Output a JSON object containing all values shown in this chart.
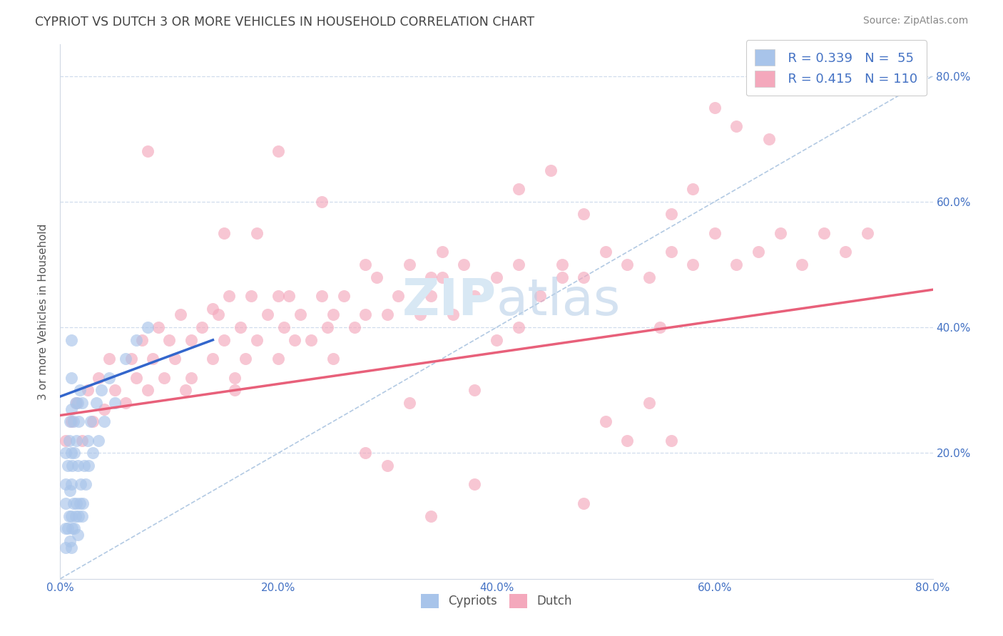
{
  "title": "CYPRIOT VS DUTCH 3 OR MORE VEHICLES IN HOUSEHOLD CORRELATION CHART",
  "source_text": "Source: ZipAtlas.com",
  "ylabel": "3 or more Vehicles in Household",
  "xmin": 0.0,
  "xmax": 0.8,
  "ymin": 0.0,
  "ymax": 0.85,
  "legend_label1": "Cypriots",
  "legend_label2": "Dutch",
  "legend_r1": "R = 0.339",
  "legend_n1": "N =  55",
  "legend_r2": "R = 0.415",
  "legend_n2": "N = 110",
  "color_cypriot": "#a8c4ea",
  "color_dutch": "#f4a8bc",
  "color_trendline_cypriot": "#3366cc",
  "color_trendline_dutch": "#e8607a",
  "color_refline": "#aac4e0",
  "title_color": "#444444",
  "source_color": "#888888",
  "axis_label_color": "#555555",
  "tick_color": "#4472c4",
  "background_color": "#ffffff",
  "grid_color": "#d0dded",
  "watermark_color": "#d8e8f4",
  "xtick_labels": [
    "0.0%",
    "20.0%",
    "40.0%",
    "60.0%",
    "80.0%"
  ],
  "xtick_positions": [
    0.0,
    0.2,
    0.4,
    0.6,
    0.8
  ],
  "ytick_labels": [
    "20.0%",
    "40.0%",
    "60.0%",
    "80.0%"
  ],
  "ytick_positions": [
    0.2,
    0.4,
    0.6,
    0.8
  ],
  "cypriot_x": [
    0.005,
    0.005,
    0.005,
    0.005,
    0.005,
    0.007,
    0.007,
    0.008,
    0.008,
    0.009,
    0.009,
    0.009,
    0.01,
    0.01,
    0.01,
    0.01,
    0.01,
    0.01,
    0.01,
    0.011,
    0.011,
    0.012,
    0.012,
    0.013,
    0.013,
    0.014,
    0.014,
    0.015,
    0.015,
    0.016,
    0.016,
    0.016,
    0.017,
    0.017,
    0.018,
    0.018,
    0.019,
    0.02,
    0.02,
    0.021,
    0.022,
    0.023,
    0.025,
    0.026,
    0.028,
    0.03,
    0.033,
    0.035,
    0.038,
    0.04,
    0.045,
    0.05,
    0.06,
    0.07,
    0.08
  ],
  "cypriot_y": [
    0.05,
    0.08,
    0.12,
    0.15,
    0.2,
    0.08,
    0.18,
    0.1,
    0.22,
    0.06,
    0.14,
    0.25,
    0.05,
    0.1,
    0.15,
    0.2,
    0.27,
    0.32,
    0.38,
    0.08,
    0.18,
    0.12,
    0.25,
    0.08,
    0.2,
    0.1,
    0.28,
    0.12,
    0.22,
    0.07,
    0.18,
    0.28,
    0.1,
    0.25,
    0.12,
    0.3,
    0.15,
    0.1,
    0.28,
    0.12,
    0.18,
    0.15,
    0.22,
    0.18,
    0.25,
    0.2,
    0.28,
    0.22,
    0.3,
    0.25,
    0.32,
    0.28,
    0.35,
    0.38,
    0.4
  ],
  "dutch_x": [
    0.005,
    0.01,
    0.015,
    0.02,
    0.025,
    0.03,
    0.035,
    0.04,
    0.045,
    0.05,
    0.06,
    0.065,
    0.07,
    0.075,
    0.08,
    0.085,
    0.09,
    0.095,
    0.1,
    0.105,
    0.11,
    0.115,
    0.12,
    0.13,
    0.14,
    0.145,
    0.15,
    0.155,
    0.16,
    0.165,
    0.17,
    0.175,
    0.18,
    0.19,
    0.2,
    0.205,
    0.21,
    0.215,
    0.22,
    0.23,
    0.24,
    0.245,
    0.25,
    0.26,
    0.27,
    0.28,
    0.29,
    0.3,
    0.31,
    0.32,
    0.33,
    0.34,
    0.35,
    0.36,
    0.37,
    0.38,
    0.4,
    0.42,
    0.44,
    0.46,
    0.48,
    0.5,
    0.52,
    0.54,
    0.56,
    0.58,
    0.6,
    0.62,
    0.64,
    0.66,
    0.68,
    0.7,
    0.72,
    0.74,
    0.15,
    0.25,
    0.35,
    0.45,
    0.55,
    0.65,
    0.12,
    0.2,
    0.3,
    0.4,
    0.5,
    0.6,
    0.08,
    0.16,
    0.24,
    0.32,
    0.42,
    0.52,
    0.62,
    0.18,
    0.28,
    0.38,
    0.48,
    0.58,
    0.14,
    0.34,
    0.54,
    0.38,
    0.28,
    0.48,
    0.2,
    0.42,
    0.56,
    0.34,
    0.46,
    0.56
  ],
  "dutch_y": [
    0.22,
    0.25,
    0.28,
    0.22,
    0.3,
    0.25,
    0.32,
    0.27,
    0.35,
    0.3,
    0.28,
    0.35,
    0.32,
    0.38,
    0.3,
    0.35,
    0.4,
    0.32,
    0.38,
    0.35,
    0.42,
    0.3,
    0.38,
    0.4,
    0.35,
    0.42,
    0.38,
    0.45,
    0.32,
    0.4,
    0.35,
    0.45,
    0.38,
    0.42,
    0.35,
    0.4,
    0.45,
    0.38,
    0.42,
    0.38,
    0.45,
    0.4,
    0.42,
    0.45,
    0.4,
    0.42,
    0.48,
    0.42,
    0.45,
    0.5,
    0.42,
    0.45,
    0.48,
    0.42,
    0.5,
    0.45,
    0.48,
    0.5,
    0.45,
    0.5,
    0.48,
    0.52,
    0.5,
    0.48,
    0.52,
    0.5,
    0.55,
    0.5,
    0.52,
    0.55,
    0.5,
    0.55,
    0.52,
    0.55,
    0.55,
    0.35,
    0.52,
    0.65,
    0.4,
    0.7,
    0.32,
    0.45,
    0.18,
    0.38,
    0.25,
    0.75,
    0.68,
    0.3,
    0.6,
    0.28,
    0.62,
    0.22,
    0.72,
    0.55,
    0.2,
    0.15,
    0.58,
    0.62,
    0.43,
    0.1,
    0.28,
    0.3,
    0.5,
    0.12,
    0.68,
    0.4,
    0.22,
    0.48,
    0.48,
    0.58
  ],
  "cyp_trend_x0": 0.0,
  "cyp_trend_x1": 0.14,
  "cyp_trend_y0": 0.29,
  "cyp_trend_y1": 0.38,
  "dutch_trend_x0": 0.0,
  "dutch_trend_x1": 0.8,
  "dutch_trend_y0": 0.26,
  "dutch_trend_y1": 0.46
}
